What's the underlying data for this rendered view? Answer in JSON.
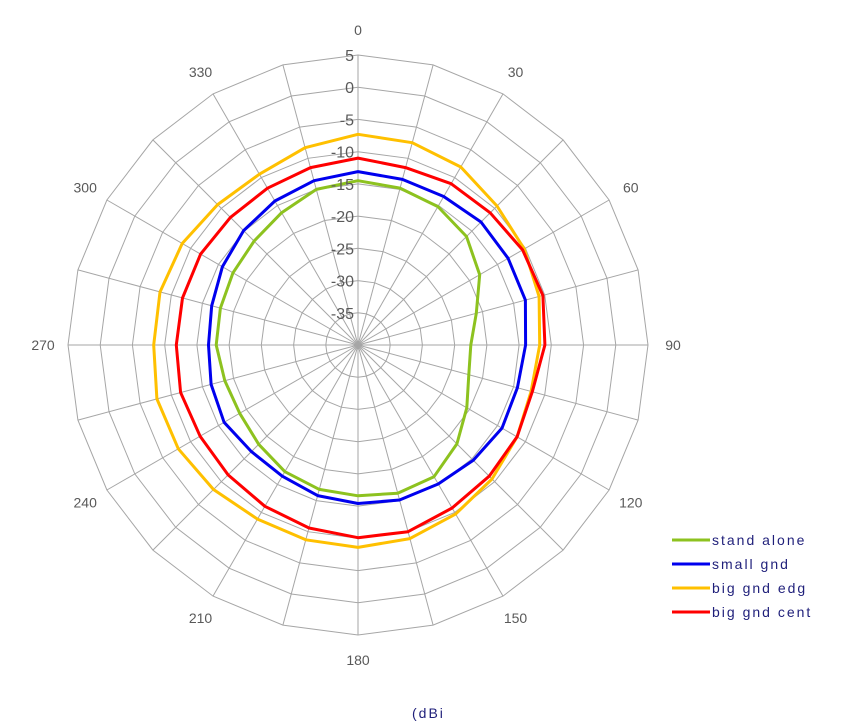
{
  "chart_data": {
    "type": "radar",
    "angles": [
      0,
      15,
      30,
      45,
      60,
      75,
      90,
      105,
      120,
      135,
      150,
      165,
      180,
      195,
      210,
      225,
      240,
      255,
      270,
      285,
      300,
      315,
      330,
      345
    ],
    "angle_tick_labels": [
      "0",
      "30",
      "60",
      "90",
      "120",
      "150",
      "180",
      "210",
      "240",
      "270",
      "300",
      "330"
    ],
    "angle_tick_values": [
      0,
      30,
      60,
      90,
      120,
      150,
      180,
      210,
      240,
      270,
      300,
      330
    ],
    "radial_ticks": [
      5,
      0,
      -5,
      -10,
      -15,
      -20,
      -25,
      -30,
      -35
    ],
    "radial_tick_labels": [
      "5",
      "0",
      "-5",
      "-10",
      "-15",
      "-20",
      "-25",
      "-30",
      "-35"
    ],
    "rlim": [
      -40,
      5
    ],
    "unit_label": "(dBi",
    "legend_position": "bottom-right",
    "series": [
      {
        "name": "stand alone",
        "color": "#8dc21f",
        "values": [
          -14.5,
          -14.8,
          -15.2,
          -16.2,
          -18.2,
          -21.0,
          -22.5,
          -22.2,
          -20.5,
          -18.3,
          -16.4,
          -16.2,
          -16.6,
          -16.8,
          -17.3,
          -18.2,
          -18.8,
          -18.6,
          -18.0,
          -17.9,
          -17.6,
          -17.2,
          -16.3,
          -15.0
        ]
      },
      {
        "name": "small gnd",
        "color": "#0000ee",
        "values": [
          -13.1,
          -13.4,
          -13.4,
          -13.0,
          -13.1,
          -13.1,
          -14.0,
          -14.4,
          -14.2,
          -14.7,
          -15.1,
          -15.1,
          -15.4,
          -15.8,
          -16.5,
          -16.6,
          -16.0,
          -16.4,
          -16.8,
          -16.5,
          -15.7,
          -14.9,
          -14.2,
          -13.6
        ]
      },
      {
        "name": "big gnd edg",
        "color": "#ffc000",
        "values": [
          -7.3,
          -7.5,
          -8.1,
          -9.5,
          -10.2,
          -10.9,
          -11.8,
          -12.2,
          -11.5,
          -10.6,
          -9.7,
          -8.9,
          -8.6,
          -8.7,
          -8.8,
          -8.3,
          -7.8,
          -7.7,
          -8.3,
          -8.2,
          -8.5,
          -9.2,
          -9.4,
          -8.3
        ]
      },
      {
        "name": "big gnd cent",
        "color": "#ff0000",
        "values": [
          -11.0,
          -11.5,
          -11.1,
          -11.0,
          -10.5,
          -10.3,
          -11.0,
          -12.0,
          -11.5,
          -11.2,
          -10.8,
          -10.0,
          -10.1,
          -10.6,
          -11.1,
          -11.5,
          -11.7,
          -11.5,
          -11.8,
          -11.8,
          -11.8,
          -12.0,
          -11.9,
          -11.5
        ]
      }
    ]
  },
  "legend": {
    "items": [
      {
        "label": "stand alone",
        "color": "#8dc21f"
      },
      {
        "label": "small gnd",
        "color": "#0000ee"
      },
      {
        "label": "big gnd edg",
        "color": "#ffc000"
      },
      {
        "label": "big gnd cent",
        "color": "#ff0000"
      }
    ]
  }
}
